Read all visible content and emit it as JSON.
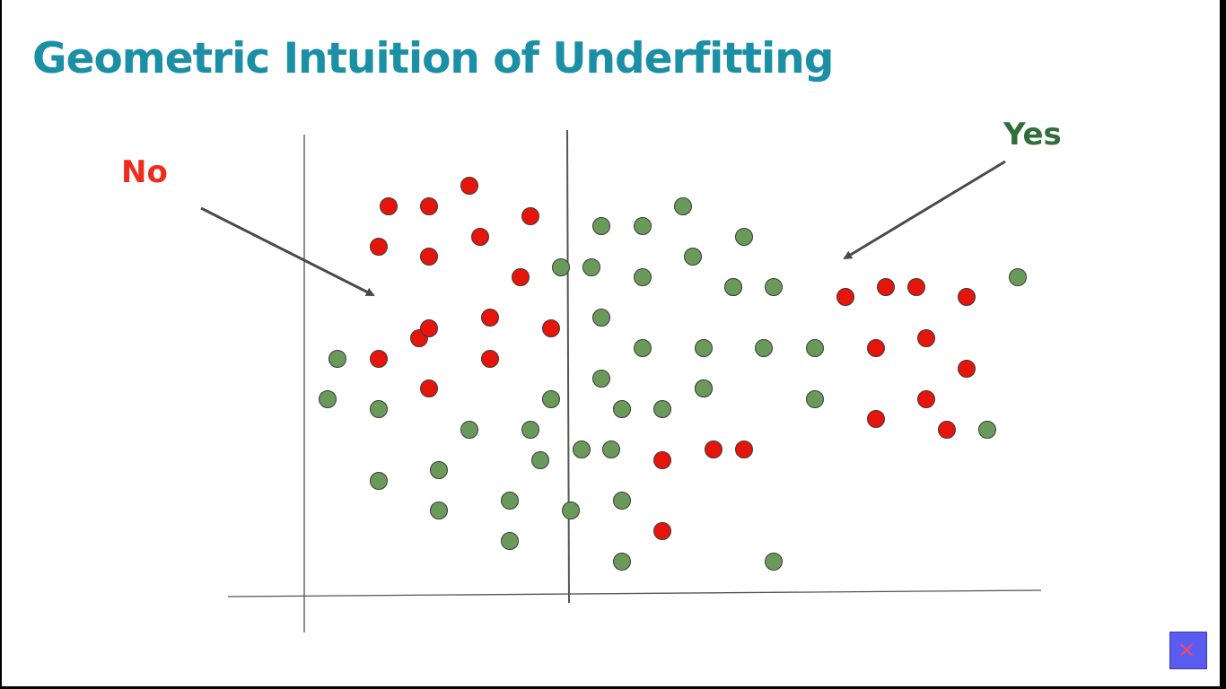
{
  "slide": {
    "title": "Geometric Intuition of Underfitting"
  },
  "annotations": [
    {
      "text": "No",
      "color": "#ee2c1e"
    },
    {
      "text": "Yes",
      "color": "#2f6e3a"
    }
  ],
  "colors": {
    "red_class": "#e5150c",
    "green_class": "#6a9a5a",
    "axis": "#555555"
  },
  "icons": {
    "badge": "close-icon"
  },
  "chart_data": {
    "type": "scatter",
    "title": "",
    "xlabel": "",
    "ylabel": "",
    "xlim": [
      0,
      820
    ],
    "ylim": [
      0,
      460
    ],
    "decision_boundaries": [
      {
        "orientation": "vertical",
        "x": 290
      }
    ],
    "series": [
      {
        "color": "#e5150c",
        "points": [
          [
            91,
            430
          ],
          [
            136,
            430
          ],
          [
            181,
            453
          ],
          [
            249,
            419
          ],
          [
            80,
            385
          ],
          [
            136,
            374
          ],
          [
            193,
            396
          ],
          [
            238,
            351
          ],
          [
            125,
            283
          ],
          [
            136,
            294
          ],
          [
            204,
            306
          ],
          [
            272,
            294
          ],
          [
            80,
            260
          ],
          [
            204,
            260
          ],
          [
            136,
            227
          ],
          [
            396,
            147
          ],
          [
            396,
            68
          ],
          [
            453,
            159
          ],
          [
            487,
            159
          ],
          [
            600,
            329
          ],
          [
            645,
            340
          ],
          [
            679,
            340
          ],
          [
            735,
            329
          ],
          [
            634,
            272
          ],
          [
            690,
            283
          ],
          [
            735,
            249
          ],
          [
            634,
            193
          ],
          [
            690,
            215
          ],
          [
            713,
            181
          ]
        ]
      },
      {
        "color": "#6a9a5a",
        "points": [
          [
            419,
            430
          ],
          [
            328,
            408
          ],
          [
            374,
            408
          ],
          [
            487,
            396
          ],
          [
            283,
            362
          ],
          [
            317,
            362
          ],
          [
            374,
            351
          ],
          [
            430,
            374
          ],
          [
            475,
            340
          ],
          [
            520,
            340
          ],
          [
            328,
            306
          ],
          [
            442,
            272
          ],
          [
            374,
            272
          ],
          [
            566,
            272
          ],
          [
            328,
            238
          ],
          [
            442,
            227
          ],
          [
            272,
            215
          ],
          [
            23,
            215
          ],
          [
            34,
            260
          ],
          [
            80,
            204
          ],
          [
            442,
            227
          ],
          [
            396,
            204
          ],
          [
            351,
            204
          ],
          [
            181,
            181
          ],
          [
            249,
            181
          ],
          [
            147,
            136
          ],
          [
            260,
            147
          ],
          [
            306,
            159
          ],
          [
            339,
            159
          ],
          [
            80,
            124
          ],
          [
            226,
            102
          ],
          [
            294,
            91
          ],
          [
            351,
            102
          ],
          [
            147,
            91
          ],
          [
            226,
            57
          ],
          [
            351,
            34
          ],
          [
            520,
            34
          ],
          [
            566,
            215
          ],
          [
            509,
            272
          ],
          [
            475,
            340
          ],
          [
            792,
            351
          ],
          [
            758,
            181
          ]
        ]
      }
    ]
  }
}
